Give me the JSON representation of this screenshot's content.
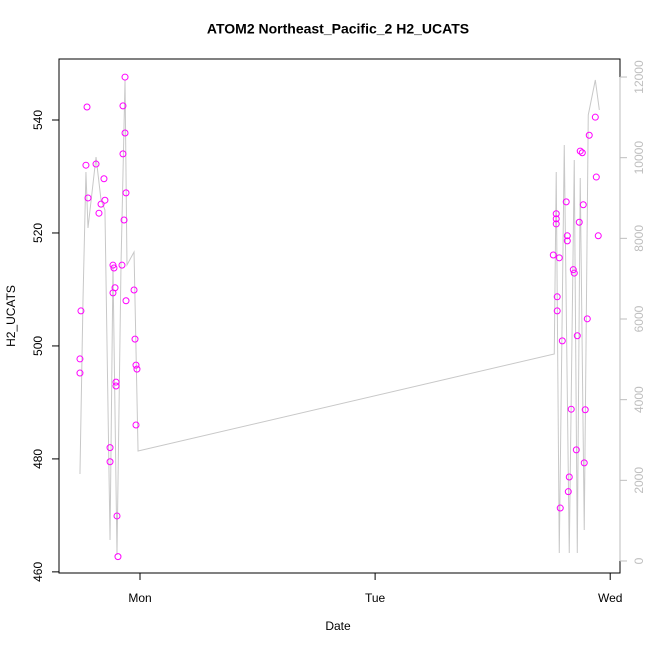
{
  "chart_data": {
    "type": "scatter",
    "title": "ATOM2 Northeast_Pacific_2 H2_UCATS",
    "x_label": "Date",
    "y_label": "H2_UCATS",
    "xlim": [
      -8.27,
      49.0
    ],
    "ylim": [
      459.8,
      550.8
    ],
    "y2lim": [
      -298,
      12447
    ],
    "xticks": [
      {
        "value": 0,
        "label": "Mon"
      },
      {
        "value": 24,
        "label": "Tue"
      },
      {
        "value": 48,
        "label": "Wed"
      }
    ],
    "yticks": [
      460,
      480,
      500,
      520,
      540
    ],
    "y2ticks": [
      0,
      2000,
      4000,
      6000,
      8000,
      10000,
      12000
    ],
    "y2_color": "#bebebe",
    "series": [
      {
        "color": "#ff00ff",
        "x": [
          -6.13,
          -6.13,
          -6.03,
          -5.41,
          -5.52,
          -5.31,
          -4.49,
          -4.19,
          -3.98,
          -3.68,
          -3.58,
          -3.06,
          -3.06,
          -2.76,
          -2.76,
          -2.66,
          -2.55,
          -2.45,
          -2.45,
          -2.35,
          -2.25,
          -1.84,
          -1.74,
          -1.74,
          -1.63,
          -1.53,
          -1.53,
          -1.43,
          -1.43,
          -0.61,
          -0.51,
          -0.41,
          -0.31,
          -0.41,
          42.19,
          42.49,
          42.49,
          42.49,
          42.59,
          42.59,
          42.8,
          42.9,
          43.11,
          43.51,
          43.62,
          43.62,
          43.72,
          43.82,
          44.02,
          44.23,
          44.33,
          44.54,
          44.64,
          44.84,
          44.94,
          45.15,
          45.25,
          45.35,
          45.45,
          45.66,
          45.86,
          46.48,
          46.58,
          46.78
        ],
        "values": [
          495.2,
          497.7,
          506.2,
          542.3,
          532.0,
          526.2,
          532.2,
          523.5,
          525.1,
          529.6,
          525.8,
          482.0,
          479.5,
          514.3,
          509.4,
          513.8,
          510.3,
          493.6,
          492.9,
          469.9,
          462.7,
          514.3,
          542.5,
          534.0,
          522.3,
          547.6,
          537.7,
          527.1,
          508.0,
          509.9,
          501.2,
          496.6,
          495.9,
          486.0,
          516.1,
          523.4,
          522.5,
          521.6,
          508.7,
          506.2,
          515.6,
          471.3,
          500.9,
          525.5,
          519.5,
          518.6,
          474.2,
          476.8,
          488.8,
          513.5,
          512.9,
          481.6,
          501.8,
          521.9,
          534.5,
          534.2,
          525.0,
          479.3,
          488.7,
          504.8,
          537.3,
          540.5,
          529.9,
          519.5
        ]
      },
      {
        "type": "line",
        "axis": "y2",
        "color": "#c8c8c8",
        "x": [
          -6.13,
          -5.82,
          -5.52,
          -5.31,
          -4.49,
          -3.98,
          -3.58,
          -3.06,
          -2.76,
          -2.35,
          -1.94,
          -1.53,
          -1.33,
          -0.61,
          -0.2,
          42.29,
          42.49,
          42.8,
          43.31,
          43.82,
          44.33,
          44.64,
          44.94,
          45.35,
          45.76,
          46.48,
          46.89
        ],
        "values": [
          2157,
          6472,
          9645,
          8257,
          10017,
          8951,
          8703,
          521,
          7315,
          149,
          7340,
          11927,
          7340,
          7662,
          2727,
          5133,
          9645,
          198,
          10315,
          198,
          9943,
          198,
          9497,
          769,
          11059,
          11927,
          11183
        ]
      }
    ]
  }
}
